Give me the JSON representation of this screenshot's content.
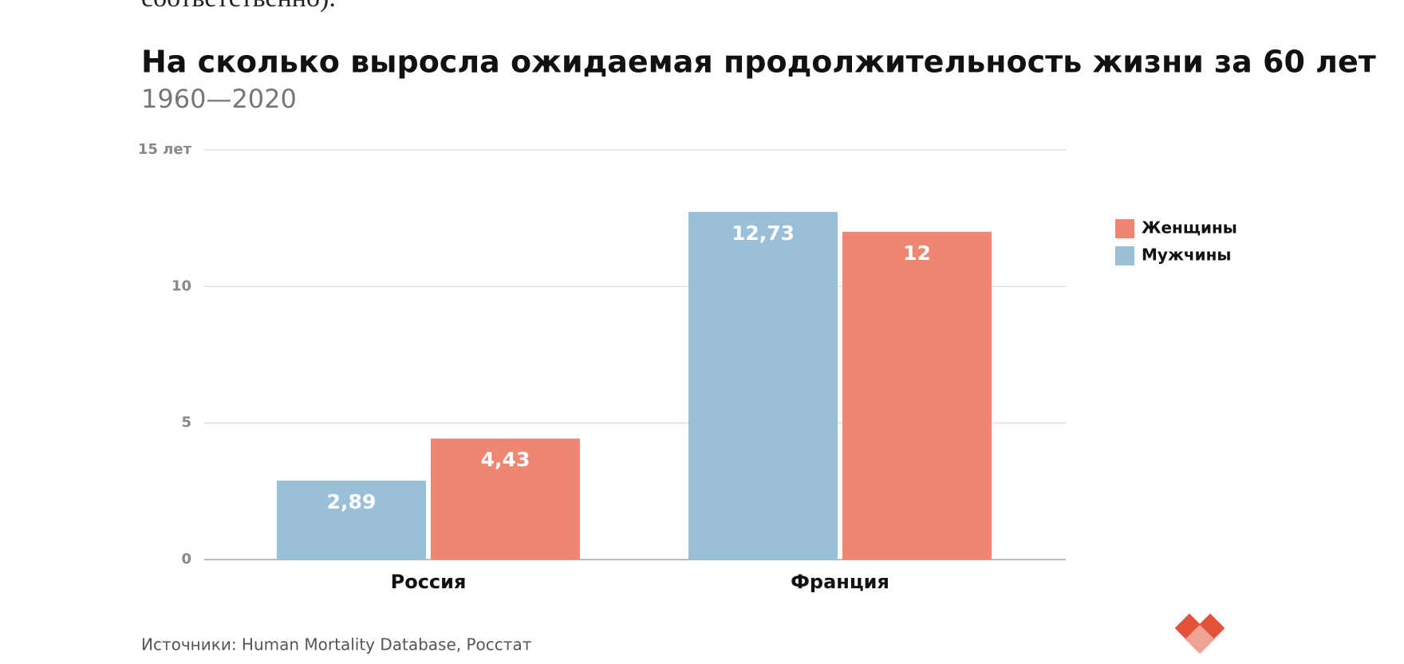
{
  "intro_tail": "соответственно).",
  "chart_data": {
    "type": "bar",
    "title": "На сколько выросла ожидаемая продолжительность жизни за 60 лет",
    "subtitle": "1960—2020",
    "categories": [
      "Россия",
      "Франция"
    ],
    "series": [
      {
        "name": "Мужчины",
        "color": "#9abfd9",
        "values": [
          2.89,
          12.73
        ],
        "value_labels": [
          "2,89",
          "12,73"
        ]
      },
      {
        "name": "Женщины",
        "color": "#ee8672",
        "values": [
          4.43,
          12
        ],
        "value_labels": [
          "4,43",
          "12"
        ]
      }
    ],
    "ylim": [
      0,
      15
    ],
    "yticks": [
      0,
      5,
      10,
      {
        "value": 15,
        "label": "15 лет"
      }
    ],
    "grid": true,
    "legend": "right",
    "source": "Источники: Human Mortality Database, Росстат"
  }
}
